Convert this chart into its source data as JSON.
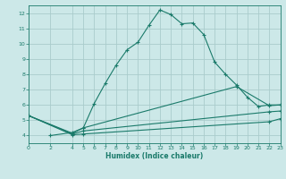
{
  "background_color": "#cce8e8",
  "grid_color": "#aacccc",
  "line_color": "#1a7a6a",
  "xlabel": "Humidex (Indice chaleur)",
  "xlim": [
    0,
    23
  ],
  "ylim": [
    3.5,
    12.5
  ],
  "yticks": [
    4,
    5,
    6,
    7,
    8,
    9,
    10,
    11,
    12
  ],
  "xticks": [
    0,
    2,
    4,
    5,
    6,
    7,
    8,
    9,
    10,
    11,
    12,
    13,
    14,
    15,
    16,
    17,
    18,
    19,
    20,
    21,
    22,
    23
  ],
  "series": [
    {
      "x": [
        2,
        4,
        5,
        6,
        7,
        8,
        9,
        10,
        11,
        12,
        13,
        14,
        15,
        16,
        17,
        18,
        19,
        20,
        21,
        22,
        23
      ],
      "y": [
        4.0,
        4.2,
        4.5,
        6.1,
        7.4,
        8.6,
        9.6,
        10.1,
        11.2,
        12.2,
        11.9,
        11.3,
        11.35,
        10.6,
        8.8,
        8.0,
        7.3,
        6.5,
        5.9,
        6.0,
        6.0
      ]
    },
    {
      "x": [
        0,
        4,
        5,
        19,
        22,
        23
      ],
      "y": [
        5.3,
        4.15,
        4.5,
        7.2,
        5.95,
        6.0
      ]
    },
    {
      "x": [
        0,
        4,
        5,
        22,
        23
      ],
      "y": [
        5.3,
        4.1,
        4.3,
        5.55,
        5.6
      ]
    },
    {
      "x": [
        0,
        4,
        5,
        22,
        23
      ],
      "y": [
        5.3,
        4.05,
        4.1,
        4.9,
        5.1
      ]
    }
  ]
}
